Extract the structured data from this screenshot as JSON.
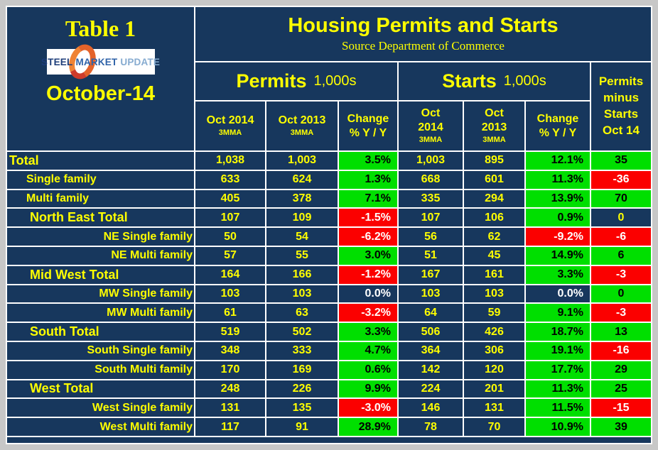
{
  "left_panel": {
    "table_label": "Table 1",
    "month": "October-14",
    "logo": {
      "steel": "STEEL",
      "market": "MARKET",
      "update": "UPDATE"
    }
  },
  "header": {
    "title": "Housing Permits and Starts",
    "source": "Source Department of Commerce",
    "permits_group": {
      "name": "Permits",
      "unit": "1,000s"
    },
    "starts_group": {
      "name": "Starts",
      "unit": "1,000s"
    },
    "pms_lines": [
      "Permits",
      "minus",
      "Starts",
      "Oct 14"
    ],
    "columns": [
      {
        "main": [
          "Oct 2014"
        ],
        "sub": "3MMA"
      },
      {
        "main": [
          "Oct 2013"
        ],
        "sub": "3MMA"
      },
      {
        "main": [
          "Change",
          "% Y / Y"
        ],
        "sub": ""
      },
      {
        "main": [
          "Oct",
          "2014"
        ],
        "sub": "3MMA"
      },
      {
        "main": [
          "Oct",
          "2013"
        ],
        "sub": "3MMA"
      },
      {
        "main": [
          "Change",
          "% Y / Y"
        ],
        "sub": ""
      }
    ]
  },
  "colors": {
    "navy": "#17375D",
    "green": "#00DF00",
    "red": "#FB0000",
    "yellow": "#FFFF00",
    "frame_gray": "#C7C7C7",
    "grid_line": "#FFFFFF"
  },
  "chart_data": {
    "type": "table",
    "title": "Housing Permits and Starts",
    "subtitle": "Source Department of Commerce",
    "unit": "1,000s",
    "column_headers": [
      "Permits Oct 2014 3MMA",
      "Permits Oct 2013 3MMA",
      "Permits Change % Y / Y",
      "Starts Oct 2014 3MMA",
      "Starts Oct 2013 3MMA",
      "Starts Change % Y / Y",
      "Permits minus Starts Oct 14"
    ],
    "rows": [
      {
        "label": "Total",
        "style": "total",
        "cells": [
          {
            "v": "1,038",
            "bg": "navy"
          },
          {
            "v": "1,003",
            "bg": "navy"
          },
          {
            "v": "3.5%",
            "bg": "green"
          },
          {
            "v": "1,003",
            "bg": "navy"
          },
          {
            "v": "895",
            "bg": "navy"
          },
          {
            "v": "12.1%",
            "bg": "green"
          },
          {
            "v": "35",
            "bg": "green"
          }
        ]
      },
      {
        "label": "Single family",
        "style": "family",
        "cells": [
          {
            "v": "633",
            "bg": "navy"
          },
          {
            "v": "624",
            "bg": "navy"
          },
          {
            "v": "1.3%",
            "bg": "green"
          },
          {
            "v": "668",
            "bg": "navy"
          },
          {
            "v": "601",
            "bg": "navy"
          },
          {
            "v": "11.3%",
            "bg": "green"
          },
          {
            "v": "-36",
            "bg": "red"
          }
        ]
      },
      {
        "label": "Multi family",
        "style": "family",
        "cells": [
          {
            "v": "405",
            "bg": "navy"
          },
          {
            "v": "378",
            "bg": "navy"
          },
          {
            "v": "7.1%",
            "bg": "green"
          },
          {
            "v": "335",
            "bg": "navy"
          },
          {
            "v": "294",
            "bg": "navy"
          },
          {
            "v": "13.9%",
            "bg": "green"
          },
          {
            "v": "70",
            "bg": "green"
          }
        ]
      },
      {
        "label": "North East Total",
        "style": "region",
        "cells": [
          {
            "v": "107",
            "bg": "navy"
          },
          {
            "v": "109",
            "bg": "navy"
          },
          {
            "v": "-1.5%",
            "bg": "red"
          },
          {
            "v": "107",
            "bg": "navy"
          },
          {
            "v": "106",
            "bg": "navy"
          },
          {
            "v": "0.9%",
            "bg": "green"
          },
          {
            "v": "0",
            "bg": "navy"
          }
        ]
      },
      {
        "label": "NE Single family",
        "style": "regionfam",
        "cells": [
          {
            "v": "50",
            "bg": "navy"
          },
          {
            "v": "54",
            "bg": "navy"
          },
          {
            "v": "-6.2%",
            "bg": "red"
          },
          {
            "v": "56",
            "bg": "navy"
          },
          {
            "v": "62",
            "bg": "navy"
          },
          {
            "v": "-9.2%",
            "bg": "red"
          },
          {
            "v": "-6",
            "bg": "red"
          }
        ]
      },
      {
        "label": "NE Multi family",
        "style": "regionfam",
        "cells": [
          {
            "v": "57",
            "bg": "navy"
          },
          {
            "v": "55",
            "bg": "navy"
          },
          {
            "v": "3.0%",
            "bg": "green"
          },
          {
            "v": "51",
            "bg": "navy"
          },
          {
            "v": "45",
            "bg": "navy"
          },
          {
            "v": "14.9%",
            "bg": "green"
          },
          {
            "v": "6",
            "bg": "green"
          }
        ]
      },
      {
        "label": "Mid West Total",
        "style": "region",
        "cells": [
          {
            "v": "164",
            "bg": "navy"
          },
          {
            "v": "166",
            "bg": "navy"
          },
          {
            "v": "-1.2%",
            "bg": "red"
          },
          {
            "v": "167",
            "bg": "navy"
          },
          {
            "v": "161",
            "bg": "navy"
          },
          {
            "v": "3.3%",
            "bg": "green"
          },
          {
            "v": "-3",
            "bg": "red"
          }
        ]
      },
      {
        "label": "MW Single family",
        "style": "regionfam",
        "cells": [
          {
            "v": "103",
            "bg": "navy"
          },
          {
            "v": "103",
            "bg": "navy"
          },
          {
            "v": "0.0%",
            "bg": "navy",
            "fg": "white"
          },
          {
            "v": "103",
            "bg": "navy"
          },
          {
            "v": "103",
            "bg": "navy"
          },
          {
            "v": "0.0%",
            "bg": "navy",
            "fg": "white"
          },
          {
            "v": "0",
            "bg": "green"
          }
        ]
      },
      {
        "label": "MW Multi family",
        "style": "regionfam",
        "cells": [
          {
            "v": "61",
            "bg": "navy"
          },
          {
            "v": "63",
            "bg": "navy"
          },
          {
            "v": "-3.2%",
            "bg": "red"
          },
          {
            "v": "64",
            "bg": "navy"
          },
          {
            "v": "59",
            "bg": "navy"
          },
          {
            "v": "9.1%",
            "bg": "green"
          },
          {
            "v": "-3",
            "bg": "red"
          }
        ]
      },
      {
        "label": "South Total",
        "style": "region",
        "cells": [
          {
            "v": "519",
            "bg": "navy"
          },
          {
            "v": "502",
            "bg": "navy"
          },
          {
            "v": "3.3%",
            "bg": "green"
          },
          {
            "v": "506",
            "bg": "navy"
          },
          {
            "v": "426",
            "bg": "navy"
          },
          {
            "v": "18.7%",
            "bg": "green"
          },
          {
            "v": "13",
            "bg": "green"
          }
        ]
      },
      {
        "label": "South Single family",
        "style": "regionfam",
        "cells": [
          {
            "v": "348",
            "bg": "navy"
          },
          {
            "v": "333",
            "bg": "navy"
          },
          {
            "v": "4.7%",
            "bg": "green"
          },
          {
            "v": "364",
            "bg": "navy"
          },
          {
            "v": "306",
            "bg": "navy"
          },
          {
            "v": "19.1%",
            "bg": "green"
          },
          {
            "v": "-16",
            "bg": "red"
          }
        ]
      },
      {
        "label": "South Multi family",
        "style": "regionfam",
        "cells": [
          {
            "v": "170",
            "bg": "navy"
          },
          {
            "v": "169",
            "bg": "navy"
          },
          {
            "v": "0.6%",
            "bg": "green"
          },
          {
            "v": "142",
            "bg": "navy"
          },
          {
            "v": "120",
            "bg": "navy"
          },
          {
            "v": "17.7%",
            "bg": "green"
          },
          {
            "v": "29",
            "bg": "green"
          }
        ]
      },
      {
        "label": "West Total",
        "style": "region",
        "cells": [
          {
            "v": "248",
            "bg": "navy"
          },
          {
            "v": "226",
            "bg": "navy"
          },
          {
            "v": "9.9%",
            "bg": "green"
          },
          {
            "v": "224",
            "bg": "navy"
          },
          {
            "v": "201",
            "bg": "navy"
          },
          {
            "v": "11.3%",
            "bg": "green"
          },
          {
            "v": "25",
            "bg": "green"
          }
        ]
      },
      {
        "label": "West Single family",
        "style": "regionfam",
        "cells": [
          {
            "v": "131",
            "bg": "navy"
          },
          {
            "v": "135",
            "bg": "navy"
          },
          {
            "v": "-3.0%",
            "bg": "red"
          },
          {
            "v": "146",
            "bg": "navy"
          },
          {
            "v": "131",
            "bg": "navy"
          },
          {
            "v": "11.5%",
            "bg": "green"
          },
          {
            "v": "-15",
            "bg": "red"
          }
        ]
      },
      {
        "label": "West Multi family",
        "style": "regionfam",
        "cells": [
          {
            "v": "117",
            "bg": "navy"
          },
          {
            "v": "91",
            "bg": "navy"
          },
          {
            "v": "28.9%",
            "bg": "green"
          },
          {
            "v": "78",
            "bg": "navy"
          },
          {
            "v": "70",
            "bg": "navy"
          },
          {
            "v": "10.9%",
            "bg": "green"
          },
          {
            "v": "39",
            "bg": "green"
          }
        ]
      }
    ]
  }
}
